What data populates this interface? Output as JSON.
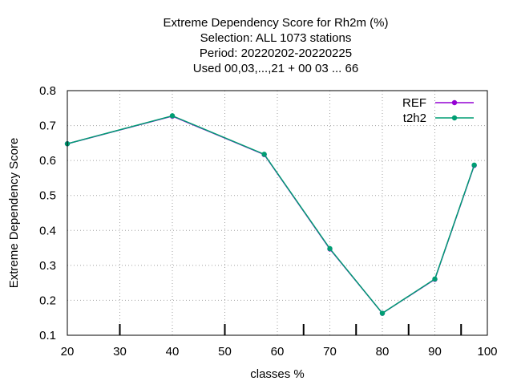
{
  "chart_data": {
    "type": "line",
    "title_lines": [
      "Extreme Dependency Score  for Rh2m (%)",
      "Selection: ALL   1073 stations",
      "Period: 20220202-20220225",
      "Used  00,03,...,21  + 00 03 ... 66"
    ],
    "xlabel": "classes %",
    "ylabel": "Extreme Dependency Score",
    "xlim": [
      20,
      100
    ],
    "ylim": [
      0.1,
      0.8
    ],
    "xticks": [
      20,
      30,
      40,
      50,
      60,
      70,
      80,
      90,
      100
    ],
    "yticks": [
      0.1,
      0.2,
      0.3,
      0.4,
      0.5,
      0.6,
      0.7,
      0.8
    ],
    "xtick_labels": [
      "20",
      "30",
      "40",
      "50",
      "60",
      "70",
      "80",
      "90",
      "100"
    ],
    "ytick_labels": [
      "0.1",
      "0.2",
      "0.3",
      "0.4",
      "0.5",
      "0.6",
      "0.7",
      "0.8"
    ],
    "minor_xticks_bottom": [
      30,
      50,
      65,
      75,
      85,
      95
    ],
    "grid": true,
    "legend_position": "top-right",
    "series": [
      {
        "name": "REF",
        "color": "#9400d3",
        "x": [
          20,
          40,
          57.5,
          70,
          80,
          90,
          97.5
        ],
        "y": [
          0.648,
          0.727,
          0.617,
          0.347,
          0.163,
          0.26,
          0.586
        ]
      },
      {
        "name": "t2h2",
        "color": "#009e73",
        "x": [
          20,
          40,
          57.5,
          70,
          80,
          90,
          97.5
        ],
        "y": [
          0.648,
          0.728,
          0.618,
          0.348,
          0.163,
          0.261,
          0.587
        ]
      }
    ]
  }
}
